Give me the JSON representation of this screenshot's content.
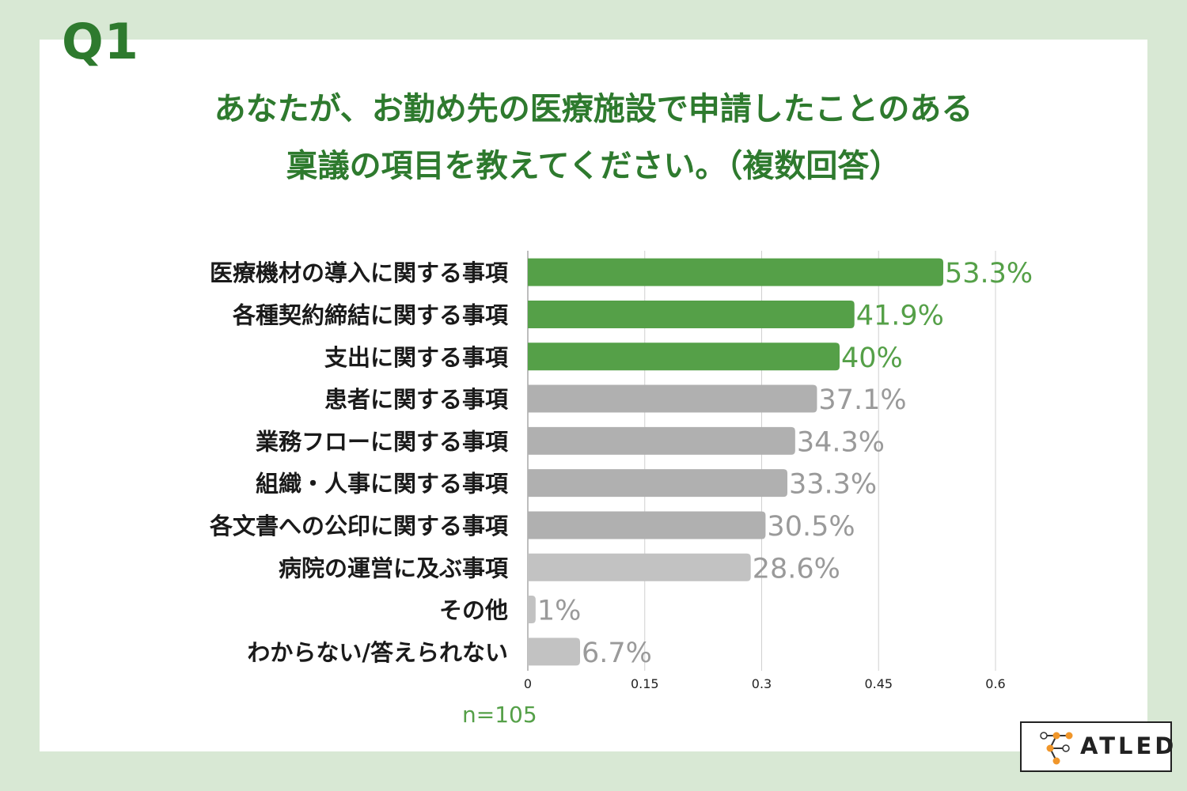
{
  "question_label": "Q1",
  "title_line1": "あなたが、お勤め先の医療施設で申請したことのある",
  "title_line2": "稟議の項目を教えてください。（複数回答）",
  "sample_size": "n=105",
  "logo_text": "ATLED",
  "colors": {
    "background": "#d8e8d4",
    "title": "#2e7a2e",
    "highlight_bar": "#55a048",
    "gray_bar": "#b4b4b4",
    "gray_label": "#9a9a9a"
  },
  "chart_data": {
    "type": "bar",
    "orientation": "horizontal",
    "categories": [
      "医療機材の導入に関する事項",
      "各種契約締結に関する事項",
      "支出に関する事項",
      "患者に関する事項",
      "業務フローに関する事項",
      "組織・人事に関する事項",
      "各文書への公印に関する事項",
      "病院の運営に及ぶ事項",
      "その他",
      "わからない/答えられない"
    ],
    "values": [
      0.533,
      0.419,
      0.4,
      0.371,
      0.343,
      0.333,
      0.305,
      0.286,
      0.01,
      0.067
    ],
    "data_labels": [
      "53.3%",
      "41.9%",
      "40%",
      "37.1%",
      "34.3%",
      "33.3%",
      "30.5%",
      "28.6%",
      "1%",
      "6.7%"
    ],
    "highlighted": [
      true,
      true,
      true,
      false,
      false,
      false,
      false,
      false,
      false,
      false
    ],
    "x_ticks": [
      "0",
      "0.15",
      "0.3",
      "0.45",
      "0.6"
    ],
    "x_tick_values": [
      0,
      0.15,
      0.3,
      0.45,
      0.6
    ],
    "xlim": [
      0,
      0.6
    ],
    "grid": true
  }
}
